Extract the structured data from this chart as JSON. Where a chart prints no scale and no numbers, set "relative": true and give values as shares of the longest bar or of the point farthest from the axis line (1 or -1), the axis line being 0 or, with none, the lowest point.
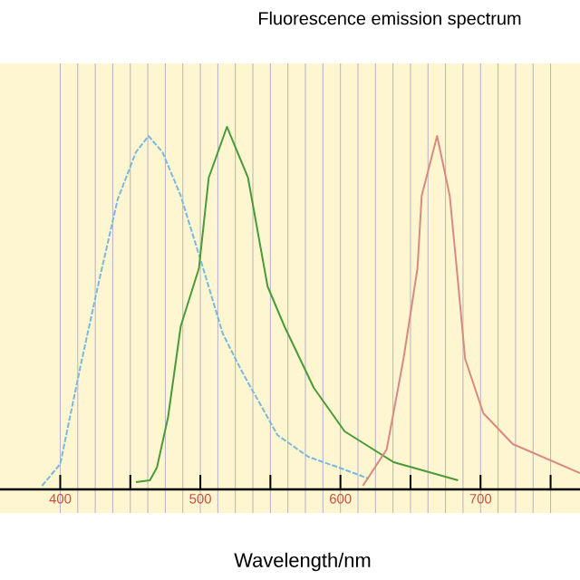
{
  "chart_data": {
    "type": "line",
    "title": "Fluorescence emission spectrum",
    "xlabel": "Wavelength/nm",
    "relative": true,
    "grid": true,
    "marker": "none",
    "line_style": "solid",
    "xlim": [
      357,
      771
    ],
    "xticks": [
      400,
      {
        "value": 450,
        "label": null
      },
      500,
      {
        "value": 550,
        "label": null
      },
      600,
      {
        "value": 650,
        "label": null
      },
      700,
      {
        "value": 750,
        "label": null
      }
    ],
    "series": [
      {
        "color": "#7ab8e0",
        "line_style": "dashed",
        "x": [
          387,
          400,
          415,
          428,
          441,
          454,
          463,
          473,
          486,
          502,
          516,
          529,
          555,
          577,
          599,
          620
        ],
        "values": [
          0.01,
          0.07,
          0.35,
          0.58,
          0.8,
          0.93,
          0.975,
          0.93,
          0.81,
          0.61,
          0.43,
          0.33,
          0.15,
          0.09,
          0.06,
          0.03
        ]
      },
      {
        "color": "#4a9a3a",
        "x": [
          454,
          464,
          469,
          477,
          486,
          499,
          506,
          519,
          534,
          548,
          560,
          581,
          603,
          638,
          684
        ],
        "values": [
          0.02,
          0.025,
          0.06,
          0.2,
          0.45,
          0.61,
          0.86,
          1.0,
          0.86,
          0.56,
          0.45,
          0.28,
          0.16,
          0.075,
          0.025
        ]
      },
      {
        "color": "#d98a80",
        "x": [
          616,
          633,
          645,
          655,
          658,
          669,
          678,
          683,
          689,
          702,
          723,
          771
        ],
        "values": [
          0.01,
          0.11,
          0.36,
          0.61,
          0.81,
          0.975,
          0.81,
          0.61,
          0.36,
          0.21,
          0.125,
          0.045
        ]
      }
    ]
  }
}
